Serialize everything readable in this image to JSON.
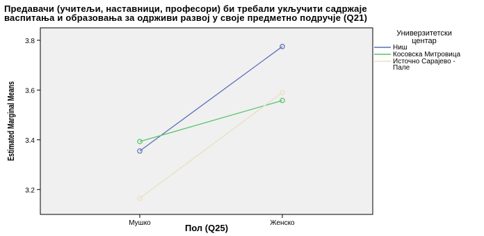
{
  "chart_data": {
    "type": "line",
    "title": [
      "Предавачи (учитељи, наставници, професори) би требали укључити садржаје",
      "васпитања и образовања за одрживи развој у своје предметно подручје (Q21)"
    ],
    "xlabel": "Пол (Q25)",
    "ylabel": "Estimated Marginal Means",
    "categories": [
      "Мушко",
      "Женско"
    ],
    "ylim": [
      3.1,
      3.85
    ],
    "yticks": [
      3.2,
      3.4,
      3.6,
      3.8
    ],
    "ytick_labels": [
      "3.2",
      "3.4",
      "3.6",
      "3.8"
    ],
    "grid": false,
    "legend_title": [
      "Универзитетски",
      "центар"
    ],
    "legend_position": "right",
    "series": [
      {
        "name": "Ниш",
        "values": [
          3.355,
          3.775
        ],
        "color": "#5b6fb8"
      },
      {
        "name": "Косовска Митровица",
        "values": [
          3.393,
          3.558
        ],
        "color": "#55c46a"
      },
      {
        "name": [
          "Источно Сарајево -",
          "Пале"
        ],
        "values": [
          3.165,
          3.59
        ],
        "color": "#e8e0c0"
      }
    ]
  }
}
